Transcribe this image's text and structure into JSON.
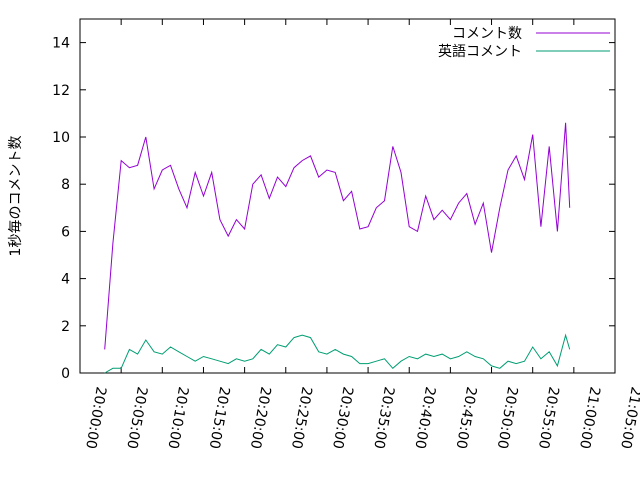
{
  "chart_data": {
    "type": "line",
    "ylabel": "1秒毎のコメント数",
    "x": [
      "20:03:00",
      "20:04:00",
      "20:05:00",
      "20:06:00",
      "20:07:00",
      "20:08:00",
      "20:09:00",
      "20:10:00",
      "20:11:00",
      "20:12:00",
      "20:13:00",
      "20:14:00",
      "20:15:00",
      "20:16:00",
      "20:17:00",
      "20:18:00",
      "20:19:00",
      "20:20:00",
      "20:21:00",
      "20:22:00",
      "20:23:00",
      "20:24:00",
      "20:25:00",
      "20:26:00",
      "20:27:00",
      "20:28:00",
      "20:29:00",
      "20:30:00",
      "20:31:00",
      "20:32:00",
      "20:33:00",
      "20:34:00",
      "20:35:00",
      "20:36:00",
      "20:37:00",
      "20:38:00",
      "20:39:00",
      "20:40:00",
      "20:41:00",
      "20:42:00",
      "20:43:00",
      "20:44:00",
      "20:45:00",
      "20:46:00",
      "20:47:00",
      "20:48:00",
      "20:49:00",
      "20:50:00",
      "20:51:00",
      "20:52:00",
      "20:53:00",
      "20:54:00",
      "20:55:00",
      "20:56:00",
      "20:57:00",
      "20:58:00",
      "20:59:00",
      "20:59:30"
    ],
    "series": [
      {
        "name": "コメント数",
        "color": "#9400d3",
        "values": [
          1.0,
          5.5,
          9.0,
          8.7,
          8.8,
          10.0,
          7.8,
          8.6,
          8.8,
          7.8,
          7.0,
          8.5,
          7.5,
          8.5,
          6.5,
          5.8,
          6.5,
          6.1,
          8.0,
          8.4,
          7.4,
          8.3,
          7.9,
          8.7,
          9.0,
          9.2,
          8.3,
          8.6,
          8.5,
          7.3,
          7.7,
          6.1,
          6.2,
          7.0,
          7.3,
          9.6,
          8.5,
          6.2,
          6.0,
          7.5,
          6.5,
          6.9,
          6.5,
          7.2,
          7.6,
          6.3,
          7.2,
          5.1,
          7.0,
          8.6,
          9.2,
          8.2,
          10.1,
          6.2,
          9.6,
          6.0,
          10.6,
          7.0
        ]
      },
      {
        "name": "英語コメント",
        "color": "#009e73",
        "values": [
          0,
          0.2,
          0.2,
          1.0,
          0.8,
          1.4,
          0.9,
          0.8,
          1.1,
          0.9,
          0.7,
          0.5,
          0.7,
          0.6,
          0.5,
          0.4,
          0.6,
          0.5,
          0.6,
          1.0,
          0.8,
          1.2,
          1.1,
          1.5,
          1.6,
          1.5,
          0.9,
          0.8,
          1.0,
          0.8,
          0.7,
          0.4,
          0.4,
          0.5,
          0.6,
          0.2,
          0.5,
          0.7,
          0.6,
          0.8,
          0.7,
          0.8,
          0.6,
          0.7,
          0.9,
          0.7,
          0.6,
          0.3,
          0.2,
          0.5,
          0.4,
          0.5,
          1.1,
          0.6,
          0.9,
          0.3,
          1.6,
          1.0
        ]
      }
    ],
    "xlim": [
      "20:00:00",
      "21:05:00"
    ],
    "xticks": [
      "20:00:00",
      "20:05:00",
      "20:10:00",
      "20:15:00",
      "20:20:00",
      "20:25:00",
      "20:30:00",
      "20:35:00",
      "20:40:00",
      "20:45:00",
      "20:50:00",
      "20:55:00",
      "21:00:00",
      "21:05:00"
    ],
    "ylim": [
      0,
      15
    ],
    "yticks": [
      0,
      2,
      4,
      6,
      8,
      10,
      12,
      14
    ],
    "legend": "top-right"
  }
}
